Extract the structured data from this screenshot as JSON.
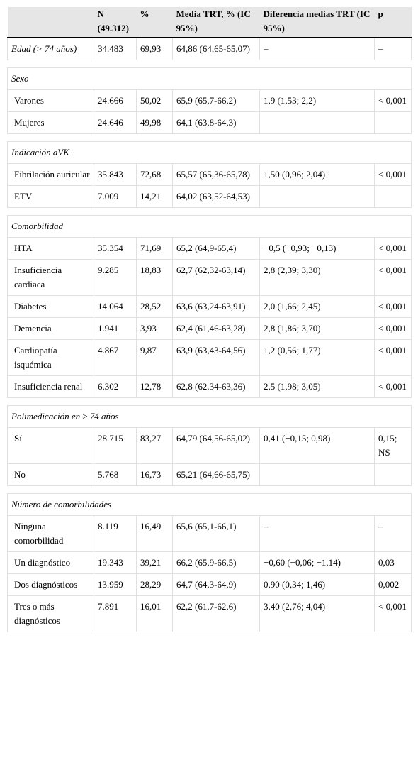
{
  "header": {
    "label": "",
    "n": "N (49.312)",
    "pct": "%",
    "media": "Media TRT, % (IC 95%)",
    "dif": "Diferencia medias TRT (IC 95%)",
    "p": "p"
  },
  "rows": {
    "edad": {
      "label": "Edad (> 74 años)",
      "n": "34.483",
      "pct": "69,93",
      "media": "64,86 (64,65-65,07)",
      "dif": "–",
      "p": "–"
    },
    "sexo": {
      "title": "Sexo"
    },
    "varones": {
      "label": "Varones",
      "n": "24.666",
      "pct": "50,02",
      "media": "65,9 (65,7-66,2)",
      "dif": "1,9 (1,53; 2,2)",
      "p": "< 0,001"
    },
    "mujeres": {
      "label": "Mujeres",
      "n": "24.646",
      "pct": "49,98",
      "media": "64,1 (63,8-64,3)",
      "dif": "",
      "p": ""
    },
    "indicacion": {
      "title": "Indicación aVK"
    },
    "fa": {
      "label": "Fibrilación auricular",
      "n": "35.843",
      "pct": "72,68",
      "media": "65,57 (65,36-65,78)",
      "dif": "1,50 (0,96; 2,04)",
      "p": "< 0,001"
    },
    "etv": {
      "label": "ETV",
      "n": "7.009",
      "pct": "14,21",
      "media": "64,02 (63,52-64,53)",
      "dif": "",
      "p": ""
    },
    "comorbilidad": {
      "title": "Comorbilidad"
    },
    "hta": {
      "label": "HTA",
      "n": "35.354",
      "pct": "71,69",
      "media": "65,2 (64,9-65,4)",
      "dif": "−0,5 (−0,93; −0,13)",
      "p": "< 0,001"
    },
    "ic": {
      "label": "Insuficiencia cardiaca",
      "n": "9.285",
      "pct": "18,83",
      "media": "62,7 (62,32-63,14)",
      "dif": "2,8 (2,39; 3,30)",
      "p": "< 0,001"
    },
    "diabetes": {
      "label": "Diabetes",
      "n": "14.064",
      "pct": "28,52",
      "media": "63,6 (63,24-63,91)",
      "dif": "2,0 (1,66; 2,45)",
      "p": "< 0,001"
    },
    "demencia": {
      "label": "Demencia",
      "n": "1.941",
      "pct": "3,93",
      "media": "62,4 (61,46-63,28)",
      "dif": "2,8 (1,86; 3,70)",
      "p": "< 0,001"
    },
    "cardio": {
      "label": "Cardiopatía isquémica",
      "n": "4.867",
      "pct": "9,87",
      "media": "63,9 (63,43-64,56)",
      "dif": "1,2 (0,56; 1,77)",
      "p": "< 0,001"
    },
    "ir": {
      "label": "Insuficiencia renal",
      "n": "6.302",
      "pct": "12,78",
      "media": "62,8 (62.34-63,36)",
      "dif": "2,5 (1,98; 3,05)",
      "p": "< 0,001"
    },
    "polimed": {
      "title": "Polimedicación en ≥ 74 años"
    },
    "si": {
      "label": "Sí",
      "n": "28.715",
      "pct": "83,27",
      "media": "64,79 (64,56-65,02)",
      "dif": "0,41 (−0,15; 0,98)",
      "p": "0,15; NS"
    },
    "no": {
      "label": "No",
      "n": "5.768",
      "pct": "16,73",
      "media": "65,21 (64,66-65,75)",
      "dif": "",
      "p": ""
    },
    "numcomorb": {
      "title": "Número de comorbilidades"
    },
    "ninguna": {
      "label": "Ninguna comorbilidad",
      "n": "8.119",
      "pct": "16,49",
      "media": "65,6 (65,1-66,1)",
      "dif": "–",
      "p": "–"
    },
    "uno": {
      "label": "Un diagnóstico",
      "n": "19.343",
      "pct": "39,21",
      "media": "66,2 (65,9-66,5)",
      "dif": "−0,60 (−0,06; −1,14)",
      "p": "0,03"
    },
    "dos": {
      "label": "Dos diagnósticos",
      "n": "13.959",
      "pct": "28,29",
      "media": "64,7 (64,3-64,9)",
      "dif": "0,90 (0,34; 1,46)",
      "p": "0,002"
    },
    "tres": {
      "label": "Tres o más diagnósticos",
      "n": "7.891",
      "pct": "16,01",
      "media": "62,2 (61,7-62,6)",
      "dif": "3,40 (2,76; 4,04)",
      "p": "< 0,001"
    }
  }
}
